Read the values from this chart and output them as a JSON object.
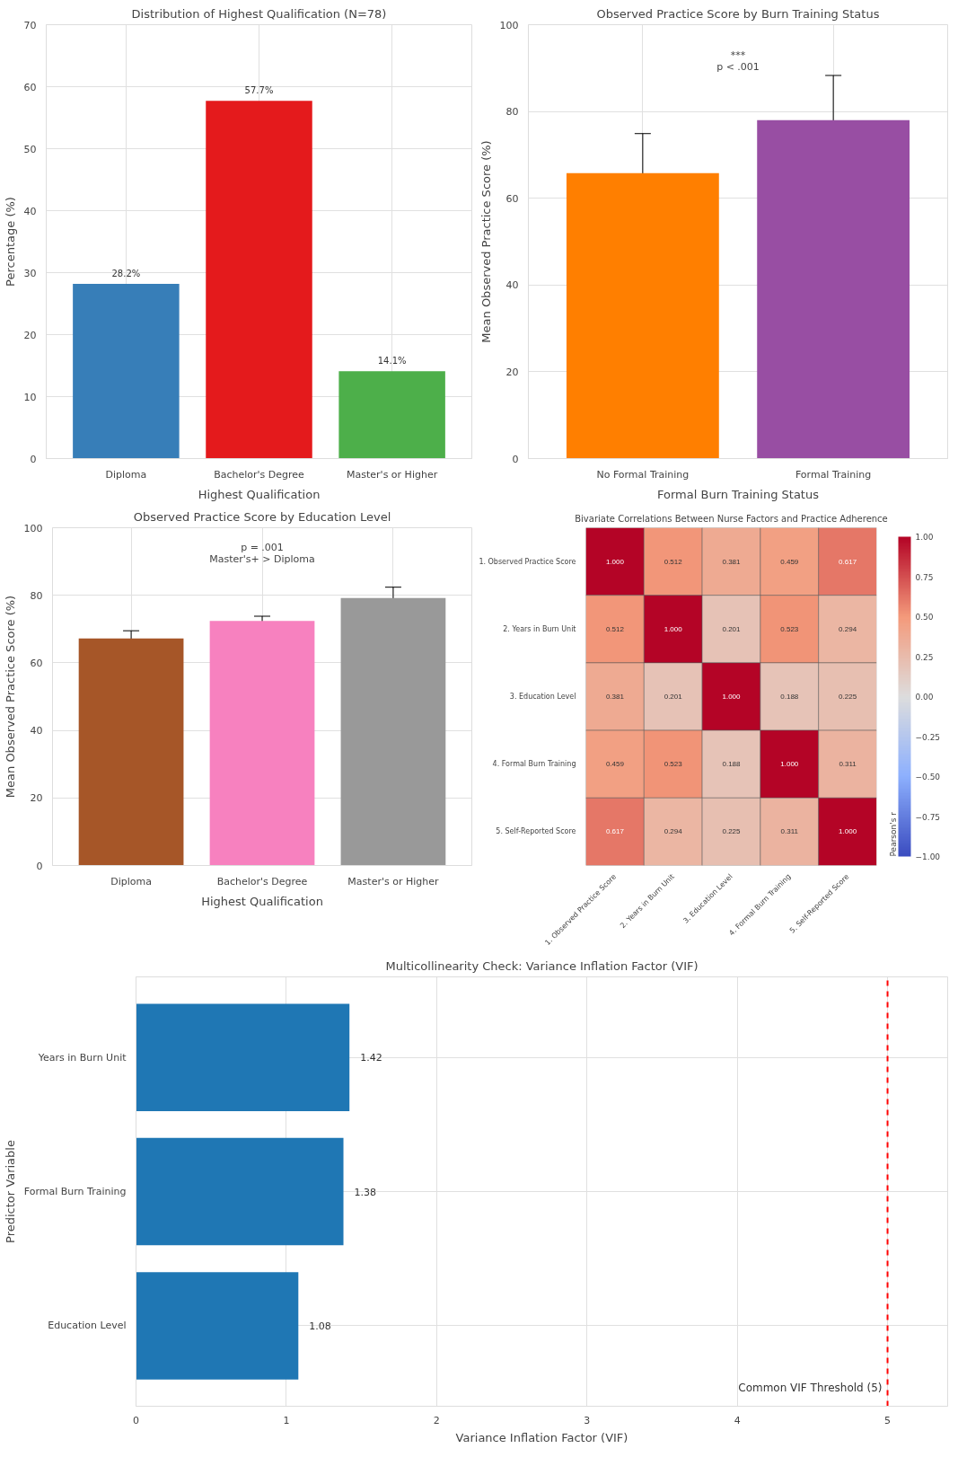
{
  "chart_data": [
    {
      "type": "bar",
      "title": "Distribution of Highest Qualification (N=78)",
      "xlabel": "Highest Qualification",
      "ylabel": "Percentage (%)",
      "categories": [
        "Diploma",
        "Bachelor's Degree",
        "Master's or Higher"
      ],
      "values": [
        28.2,
        57.7,
        14.1
      ],
      "colors": [
        "#377eb8",
        "#e41a1c",
        "#4daf4a"
      ],
      "value_labels": [
        "28.2%",
        "57.7%",
        "14.1%"
      ],
      "ylim": [
        0,
        70
      ],
      "yticks": [
        0,
        10,
        20,
        30,
        40,
        50,
        60,
        70
      ],
      "grid": true
    },
    {
      "type": "bar",
      "title": "Observed Practice Score by Burn Training Status",
      "xlabel": "Formal Burn Training Status",
      "ylabel": "Mean Observed Practice Score (%)",
      "categories": [
        "No Formal Training",
        "Formal Training"
      ],
      "values": [
        65.8,
        78.0
      ],
      "errors": [
        9.1,
        10.3
      ],
      "colors": [
        "#ff7f00",
        "#984ea3"
      ],
      "ylim": [
        0,
        100
      ],
      "yticks": [
        0,
        20,
        40,
        60,
        80,
        100
      ],
      "grid": true,
      "annotations": [
        "***",
        "p < .001"
      ]
    },
    {
      "type": "bar",
      "title": "Observed Practice Score by Education Level",
      "xlabel": "Highest Qualification",
      "ylabel": "Mean Observed Practice Score (%)",
      "categories": [
        "Diploma",
        "Bachelor's Degree",
        "Master's or Higher"
      ],
      "values": [
        67.2,
        72.4,
        79.2
      ],
      "errors": [
        2.3,
        1.4,
        3.2
      ],
      "colors": [
        "#a65628",
        "#f781bf",
        "#999999"
      ],
      "ylim": [
        0,
        100
      ],
      "yticks": [
        0,
        20,
        40,
        60,
        80,
        100
      ],
      "grid": true,
      "annotations": [
        "p = .001",
        "Master's+ > Diploma"
      ]
    },
    {
      "type": "heatmap",
      "title": "Bivariate Correlations Between Nurse Factors and Practice Adherence",
      "categories": [
        "1. Observed Practice Score",
        "2. Years in Burn Unit",
        "3. Education Level",
        "4. Formal Burn Training",
        "5. Self-Reported Score"
      ],
      "y_categories": [
        "1. Observed Practice Score",
        "2. Years in Burn Unit",
        "3. Education Level",
        "4. Formal Burn Training",
        "5. Self-Reported Score"
      ],
      "cells": [
        [
          1.0,
          0.512,
          0.381,
          0.459,
          0.617
        ],
        [
          0.512,
          1.0,
          0.201,
          0.523,
          0.294
        ],
        [
          0.381,
          0.201,
          1.0,
          0.188,
          0.225
        ],
        [
          0.459,
          0.523,
          0.188,
          1.0,
          0.311
        ],
        [
          0.617,
          0.294,
          0.225,
          0.311,
          1.0
        ]
      ],
      "cell_labels": [
        [
          "1.000",
          "0.512",
          "0.381",
          "0.459",
          "0.617"
        ],
        [
          "0.512",
          "1.000",
          "0.201",
          "0.523",
          "0.294"
        ],
        [
          "0.381",
          "0.201",
          "1.000",
          "0.188",
          "0.225"
        ],
        [
          "0.459",
          "0.523",
          "0.188",
          "1.000",
          "0.311"
        ],
        [
          "0.617",
          "0.294",
          "0.225",
          "0.311",
          "1.000"
        ]
      ],
      "clabel": "Pearson's r",
      "clim": [
        -1,
        1
      ],
      "cticks": [
        {
          "value": -1,
          "label": "−1.00"
        },
        {
          "value": -0.75,
          "label": "−0.75"
        },
        {
          "value": -0.5,
          "label": "−0.50"
        },
        {
          "value": -0.25,
          "label": "−0.25"
        },
        {
          "value": 0,
          "label": "0.00"
        },
        {
          "value": 0.25,
          "label": "0.25"
        },
        {
          "value": 0.5,
          "label": "0.50"
        },
        {
          "value": 0.75,
          "label": "0.75"
        },
        {
          "value": 1,
          "label": "1.00"
        }
      ]
    },
    {
      "type": "bar",
      "orientation": "horizontal",
      "title": "Multicollinearity Check: Variance Inflation Factor (VIF)",
      "xlabel": "Variance Inflation Factor (VIF)",
      "ylabel": "Predictor Variable",
      "categories": [
        "Years in Burn Unit",
        "Formal Burn Training",
        "Education Level"
      ],
      "values": [
        1.42,
        1.38,
        1.08
      ],
      "color": "#1f77b4",
      "data_labels": true,
      "xlim": [
        0,
        5.4
      ],
      "xticks": [
        0,
        1,
        2,
        3,
        4,
        5
      ],
      "grid": true,
      "legend": "bottom right",
      "ref_lines": [
        {
          "axis": "x",
          "value": 5,
          "label": "Common VIF Threshold (5)",
          "color": "#ff0000",
          "line_style": "dashed"
        }
      ]
    }
  ]
}
